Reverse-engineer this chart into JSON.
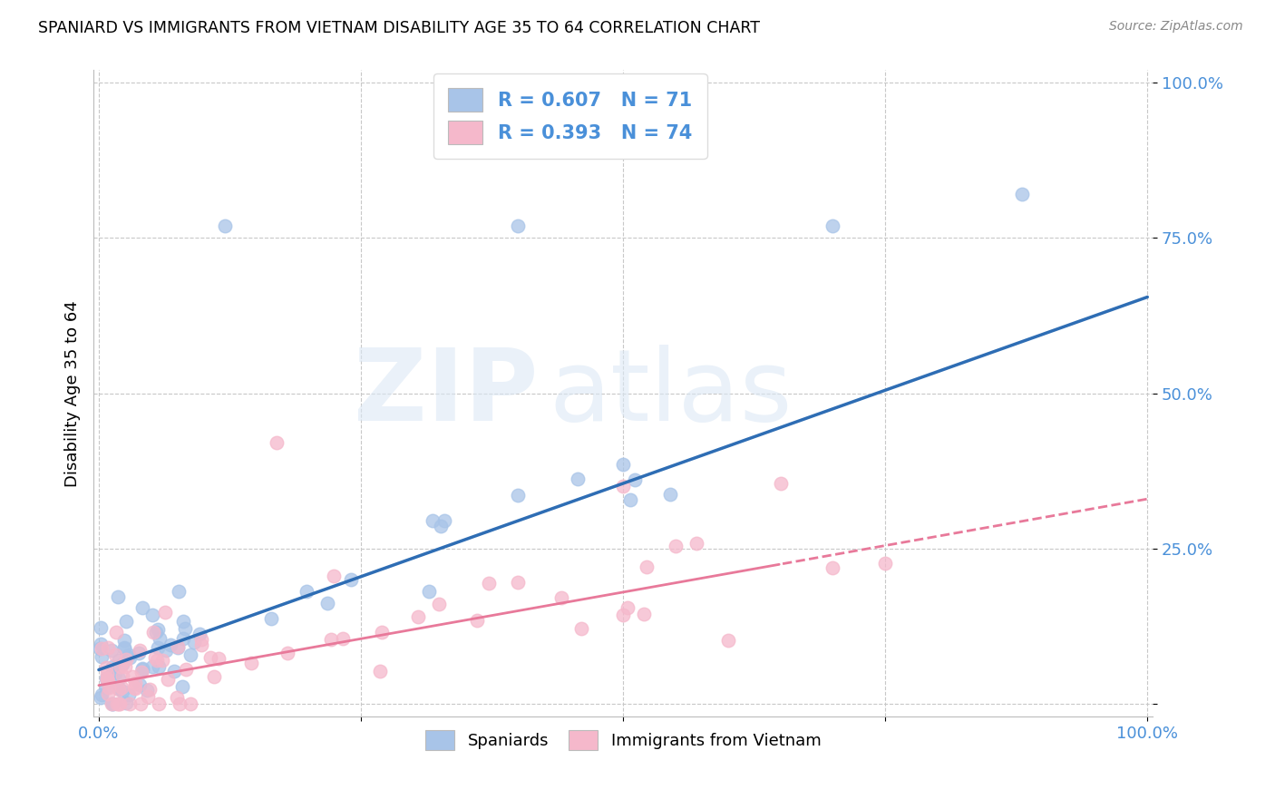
{
  "title": "SPANIARD VS IMMIGRANTS FROM VIETNAM DISABILITY AGE 35 TO 64 CORRELATION CHART",
  "source": "Source: ZipAtlas.com",
  "ylabel": "Disability Age 35 to 64",
  "watermark_zip": "ZIP",
  "watermark_atlas": "atlas",
  "blue_color": "#a8c4e8",
  "pink_color": "#f5b8cb",
  "blue_line_color": "#2e6db4",
  "pink_line_color": "#e8799a",
  "tick_label_color": "#4a90d9",
  "R_blue": 0.607,
  "N_blue": 71,
  "R_pink": 0.393,
  "N_pink": 74,
  "blue_intercept": 0.055,
  "blue_slope": 0.6,
  "pink_intercept": 0.03,
  "pink_slope": 0.3
}
